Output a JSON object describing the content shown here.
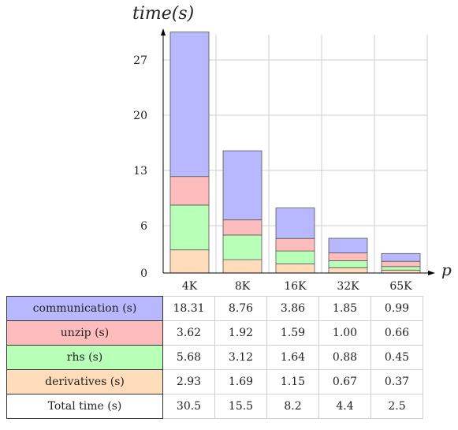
{
  "chart_data": {
    "type": "bar",
    "stacked": true,
    "ylabel": "time(s)",
    "xlabel": "p",
    "categories": [
      "4K",
      "8K",
      "16K",
      "32K",
      "65K"
    ],
    "yticks": [
      0,
      6,
      13,
      20,
      27
    ],
    "ylim": [
      0,
      30.5
    ],
    "grid": true,
    "series": [
      {
        "name": "derivatives (s)",
        "values": [
          2.93,
          1.69,
          1.15,
          0.67,
          0.37
        ],
        "color": "#ffdcba"
      },
      {
        "name": "rhs (s)",
        "values": [
          5.68,
          3.12,
          1.64,
          0.88,
          0.45
        ],
        "color": "#b8ffb8"
      },
      {
        "name": "unzip (s)",
        "values": [
          3.62,
          1.92,
          1.59,
          1.0,
          0.66
        ],
        "color": "#ffbcbc"
      },
      {
        "name": "communication (s)",
        "values": [
          18.31,
          8.76,
          3.86,
          1.85,
          0.99
        ],
        "color": "#b8b8ff"
      }
    ]
  },
  "table": {
    "rows": [
      {
        "label": "communication (s)",
        "color": "#b8b8ff",
        "values": [
          "18.31",
          "8.76",
          "3.86",
          "1.85",
          "0.99"
        ]
      },
      {
        "label": "unzip (s)",
        "color": "#ffbcbc",
        "values": [
          "3.62",
          "1.92",
          "1.59",
          "1.00",
          "0.66"
        ]
      },
      {
        "label": "rhs (s)",
        "color": "#b8ffb8",
        "values": [
          "5.68",
          "3.12",
          "1.64",
          "0.88",
          "0.45"
        ]
      },
      {
        "label": "derivatives (s)",
        "color": "#ffdcba",
        "values": [
          "2.93",
          "1.69",
          "1.15",
          "0.67",
          "0.37"
        ]
      },
      {
        "label": "Total time (s)",
        "color": "#ffffff",
        "values": [
          "30.5",
          "15.5",
          "8.2",
          "4.4",
          "2.5"
        ]
      }
    ]
  }
}
